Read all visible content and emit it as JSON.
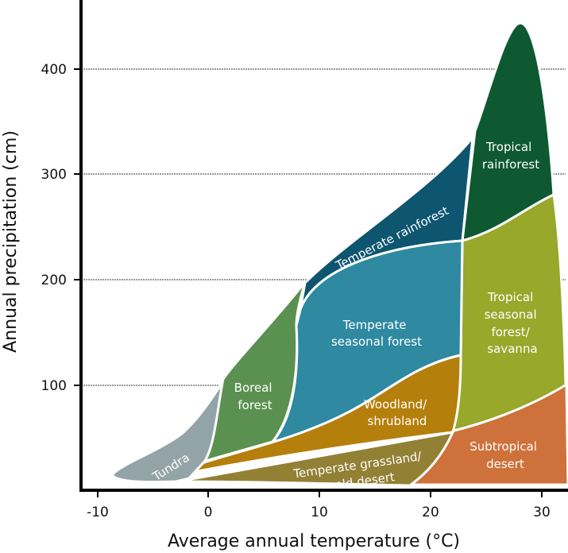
{
  "chart_data": {
    "type": "area",
    "title": "",
    "xlabel": "Average annual temperature (°C)",
    "ylabel": "Annual precipitation (cm)",
    "xlim": [
      -11.5,
      32.5
    ],
    "ylim": [
      0,
      450
    ],
    "xticks": [
      "-10",
      "0",
      "10",
      "20",
      "30"
    ],
    "yticks": [
      "100",
      "200",
      "300",
      "400"
    ],
    "grid": "horizontal dotted",
    "biomes": [
      {
        "name": "Tundra",
        "label": [
          "Tundra"
        ],
        "color": "#93a4a9",
        "temp_range": [
          -9,
          1
        ],
        "precip_range": [
          8,
          100
        ]
      },
      {
        "name": "Boreal forest",
        "label": [
          "Boreal",
          "forest"
        ],
        "color": "#5b9150",
        "temp_range": [
          0,
          8
        ],
        "precip_range": [
          25,
          200
        ]
      },
      {
        "name": "Temperate rainforest",
        "label": [
          "Temperate rainforest"
        ],
        "color": "#0e5570",
        "temp_range": [
          8,
          24
        ],
        "precip_range": [
          170,
          335
        ]
      },
      {
        "name": "Temperate seasonal forest",
        "label": [
          "Temperate",
          "seasonal forest"
        ],
        "color": "#2e89a1",
        "temp_range": [
          6,
          22
        ],
        "precip_range": [
          45,
          235
        ]
      },
      {
        "name": "Woodland/shrubland",
        "label": [
          "Woodland/",
          "shrubland"
        ],
        "color": "#b57f0c",
        "temp_range": [
          0,
          22
        ],
        "precip_range": [
          20,
          130
        ]
      },
      {
        "name": "Temperate grassland/cold desert",
        "label": [
          "Temperate grassland/",
          "cold desert"
        ],
        "color": "#928035",
        "temp_range": [
          -3,
          22
        ],
        "precip_range": [
          5,
          55
        ]
      },
      {
        "name": "Tropical rainforest",
        "label": [
          "Tropical",
          "rainforest"
        ],
        "color": "#0e5931",
        "temp_range": [
          23,
          31
        ],
        "precip_range": [
          240,
          445
        ]
      },
      {
        "name": "Tropical seasonal forest/savanna",
        "label": [
          "Tropical",
          "seasonal",
          "forest/",
          "savanna"
        ],
        "color": "#97a82b",
        "temp_range": [
          22,
          32
        ],
        "precip_range": [
          55,
          280
        ]
      },
      {
        "name": "Subtropical desert",
        "label": [
          "Subtropical",
          "desert"
        ],
        "color": "#cf713b",
        "temp_range": [
          18,
          32
        ],
        "precip_range": [
          5,
          100
        ]
      }
    ]
  }
}
